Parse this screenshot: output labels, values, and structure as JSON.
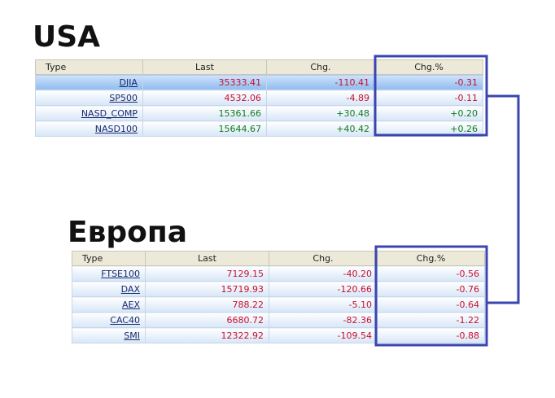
{
  "usa": {
    "title": "USA",
    "columns": [
      "Type",
      "Last",
      "Chg.",
      "Chg.%"
    ],
    "rows": [
      [
        "DJIA",
        "35333.41",
        "-110.41",
        "-0.31"
      ],
      [
        "SP500",
        "4532.06",
        "-4.89",
        "-0.11"
      ],
      [
        "NASD_COMP",
        "15361.66",
        "+30.48",
        "+0.20"
      ],
      [
        "NASD100",
        "15644.67",
        "+40.42",
        "+0.26"
      ]
    ]
  },
  "europe": {
    "title": "Европа",
    "columns": [
      "Type",
      "Last",
      "Chg.",
      "Chg.%"
    ],
    "rows": [
      [
        "FTSE100",
        "7129.15",
        "-40.20",
        "-0.56"
      ],
      [
        "DAX",
        "15719.93",
        "-120.66",
        "-0.76"
      ],
      [
        "AEX",
        "788.22",
        "-5.10",
        "-0.64"
      ],
      [
        "CAC40",
        "6680.72",
        "-82.36",
        "-1.22"
      ],
      [
        "SMI",
        "12322.92",
        "-109.54",
        "-0.88"
      ]
    ]
  }
}
